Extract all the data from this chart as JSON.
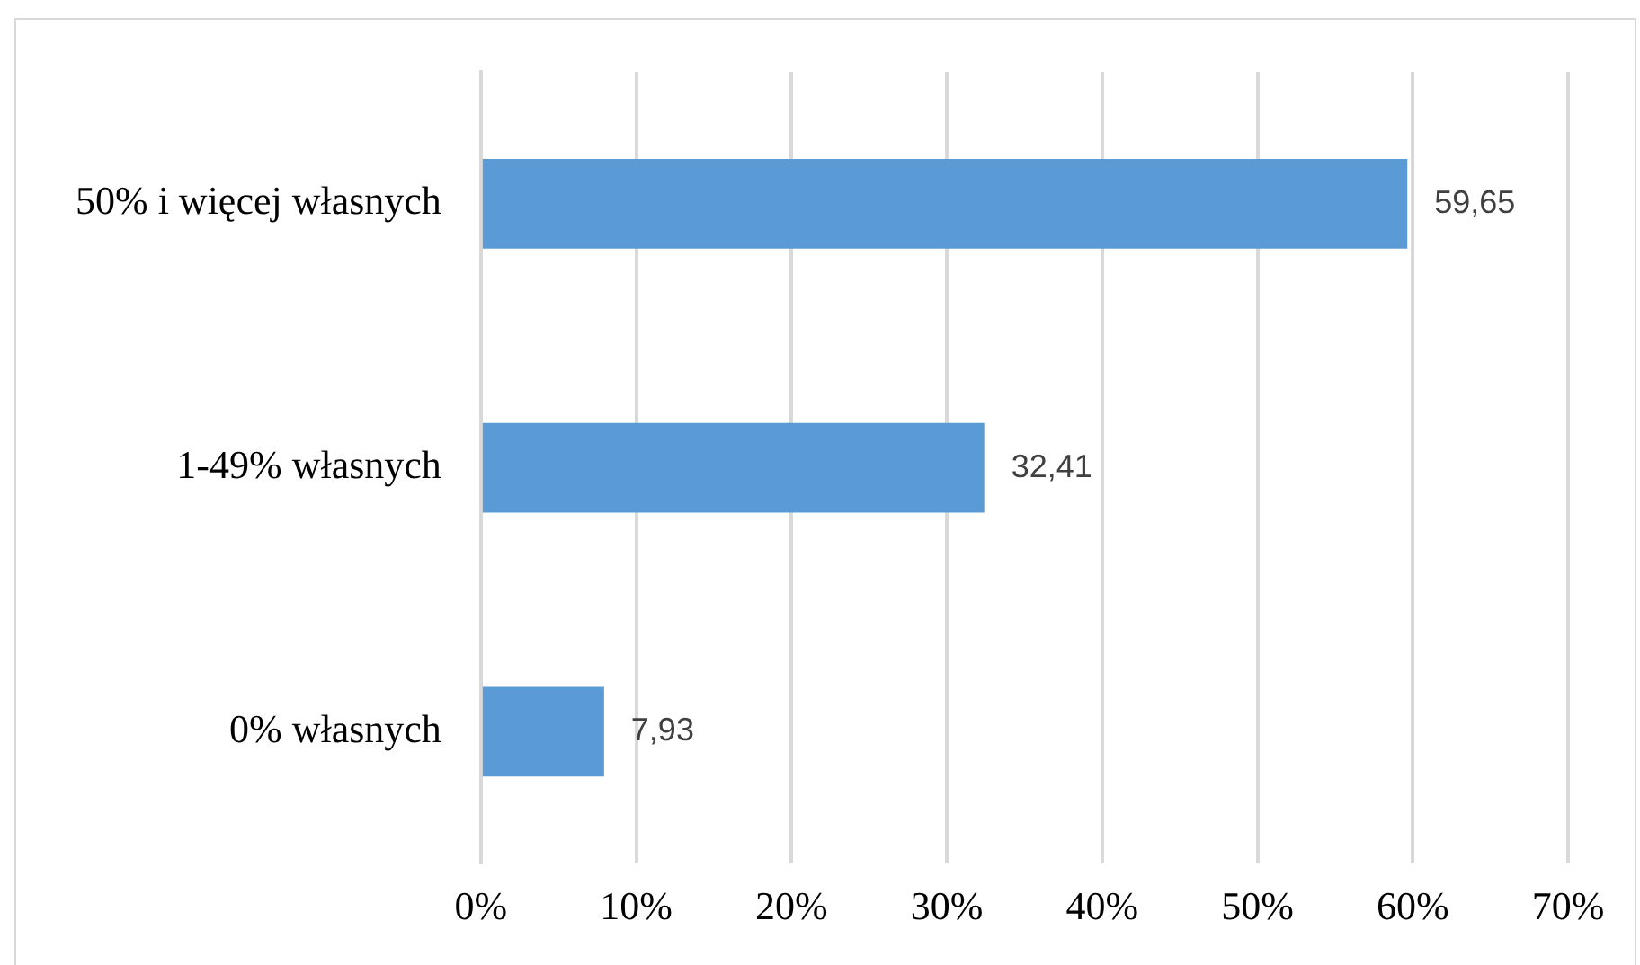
{
  "chart_data": {
    "type": "bar",
    "orientation": "horizontal",
    "categories": [
      "50% i więcej własnych",
      "1-49% własnych",
      "0% własnych"
    ],
    "values": [
      59.65,
      32.41,
      7.93
    ],
    "value_labels": [
      "59,65",
      "32,41",
      "7,93"
    ],
    "color": "#5b9bd5",
    "xlim": [
      0,
      70
    ],
    "xticks": [
      {
        "value": 0,
        "label": "0%"
      },
      {
        "value": 10,
        "label": "10%"
      },
      {
        "value": 20,
        "label": "20%"
      },
      {
        "value": 30,
        "label": "30%"
      },
      {
        "value": 40,
        "label": "40%"
      },
      {
        "value": 50,
        "label": "50%"
      },
      {
        "value": 60,
        "label": "60%"
      },
      {
        "value": 70,
        "label": "70%"
      }
    ],
    "grid": "x",
    "legend": false
  }
}
